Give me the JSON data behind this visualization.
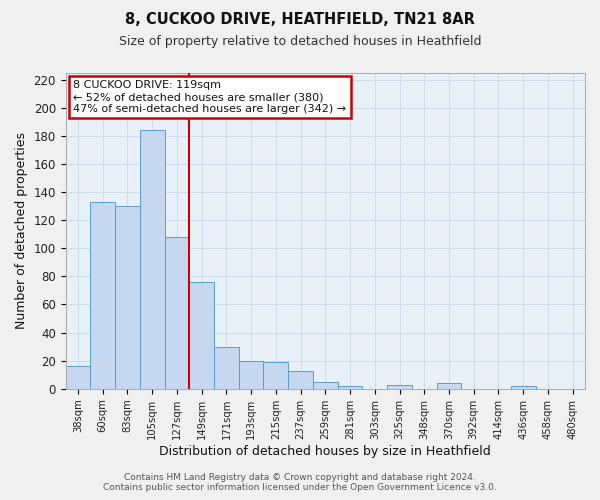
{
  "title": "8, CUCKOO DRIVE, HEATHFIELD, TN21 8AR",
  "subtitle": "Size of property relative to detached houses in Heathfield",
  "xlabel": "Distribution of detached houses by size in Heathfield",
  "ylabel": "Number of detached properties",
  "bar_labels": [
    "38sqm",
    "60sqm",
    "83sqm",
    "105sqm",
    "127sqm",
    "149sqm",
    "171sqm",
    "193sqm",
    "215sqm",
    "237sqm",
    "259sqm",
    "281sqm",
    "303sqm",
    "325sqm",
    "348sqm",
    "370sqm",
    "392sqm",
    "414sqm",
    "436sqm",
    "458sqm",
    "480sqm"
  ],
  "bar_values": [
    16,
    133,
    130,
    184,
    108,
    76,
    30,
    20,
    19,
    13,
    5,
    2,
    0,
    3,
    0,
    4,
    0,
    0,
    2,
    0,
    0
  ],
  "bar_color": "#c5d8f0",
  "bar_edge_color": "#5b9bd5",
  "vline_x": 4,
  "vline_color": "#cc0000",
  "annotation_title": "8 CUCKOO DRIVE: 119sqm",
  "annotation_line1": "← 52% of detached houses are smaller (380)",
  "annotation_line2": "47% of semi-detached houses are larger (342) →",
  "annotation_box_color": "#ffffff",
  "annotation_box_edge": "#cc0000",
  "ylim": [
    0,
    225
  ],
  "yticks": [
    0,
    20,
    40,
    60,
    80,
    100,
    120,
    140,
    160,
    180,
    200,
    220
  ],
  "grid_color": "#c8d8e8",
  "bg_color": "#e8f0f8",
  "fig_bg_color": "#f0f0f0",
  "footer1": "Contains HM Land Registry data © Crown copyright and database right 2024.",
  "footer2": "Contains public sector information licensed under the Open Government Licence v3.0."
}
